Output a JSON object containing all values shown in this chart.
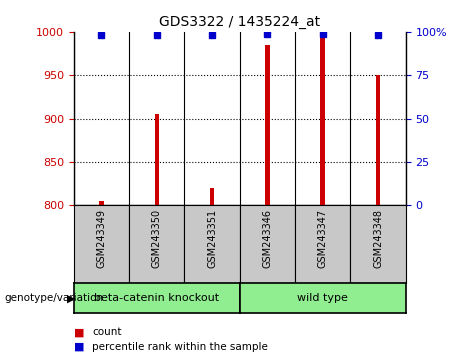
{
  "title": "GDS3322 / 1435224_at",
  "samples": [
    "GSM243349",
    "GSM243350",
    "GSM243351",
    "GSM243346",
    "GSM243347",
    "GSM243348"
  ],
  "counts": [
    805,
    905,
    820,
    985,
    998,
    950
  ],
  "percentiles": [
    98,
    98,
    98,
    99,
    99,
    98
  ],
  "left_ylim": [
    800,
    1000
  ],
  "right_ylim": [
    0,
    100
  ],
  "left_yticks": [
    800,
    850,
    900,
    950,
    1000
  ],
  "right_yticks": [
    0,
    25,
    50,
    75,
    100
  ],
  "right_yticklabels": [
    "0",
    "25",
    "50",
    "75",
    "100%"
  ],
  "group_label": "genotype/variation",
  "groups_info": [
    {
      "label": "beta-catenin knockout",
      "start": 0,
      "end": 2
    },
    {
      "label": "wild type",
      "start": 3,
      "end": 5
    }
  ],
  "bar_color": "#CC0000",
  "dot_color": "#0000CC",
  "bar_width": 0.08,
  "grid_color": "black",
  "legend_count_label": "count",
  "legend_percentile_label": "percentile rank within the sample",
  "cell_bg_color": "#C8C8C8",
  "group_color": "#90EE90"
}
